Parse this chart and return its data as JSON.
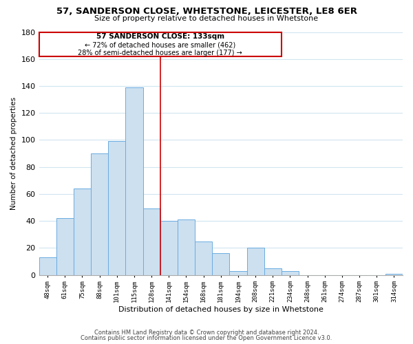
{
  "title1": "57, SANDERSON CLOSE, WHETSTONE, LEICESTER, LE8 6ER",
  "title2": "Size of property relative to detached houses in Whetstone",
  "xlabel": "Distribution of detached houses by size in Whetstone",
  "ylabel": "Number of detached properties",
  "bin_labels": [
    "48sqm",
    "61sqm",
    "75sqm",
    "88sqm",
    "101sqm",
    "115sqm",
    "128sqm",
    "141sqm",
    "154sqm",
    "168sqm",
    "181sqm",
    "194sqm",
    "208sqm",
    "221sqm",
    "234sqm",
    "248sqm",
    "261sqm",
    "274sqm",
    "287sqm",
    "301sqm",
    "314sqm"
  ],
  "bar_heights": [
    13,
    42,
    64,
    90,
    99,
    139,
    49,
    40,
    41,
    25,
    16,
    3,
    20,
    5,
    3,
    0,
    0,
    0,
    0,
    0,
    1
  ],
  "bar_color": "#cce0f0",
  "bar_edge_color": "#6aabe0",
  "grid_color": "#d0e4f0",
  "vline_color": "#cc0000",
  "annotation_box_title": "57 SANDERSON CLOSE: 133sqm",
  "annotation_line1": "← 72% of detached houses are smaller (462)",
  "annotation_line2": "28% of semi-detached houses are larger (177) →",
  "annotation_box_edge_color": "#cc0000",
  "ylim": [
    0,
    180
  ],
  "yticks": [
    0,
    20,
    40,
    60,
    80,
    100,
    120,
    140,
    160,
    180
  ],
  "footnote1": "Contains HM Land Registry data © Crown copyright and database right 2024.",
  "footnote2": "Contains public sector information licensed under the Open Government Licence v3.0."
}
